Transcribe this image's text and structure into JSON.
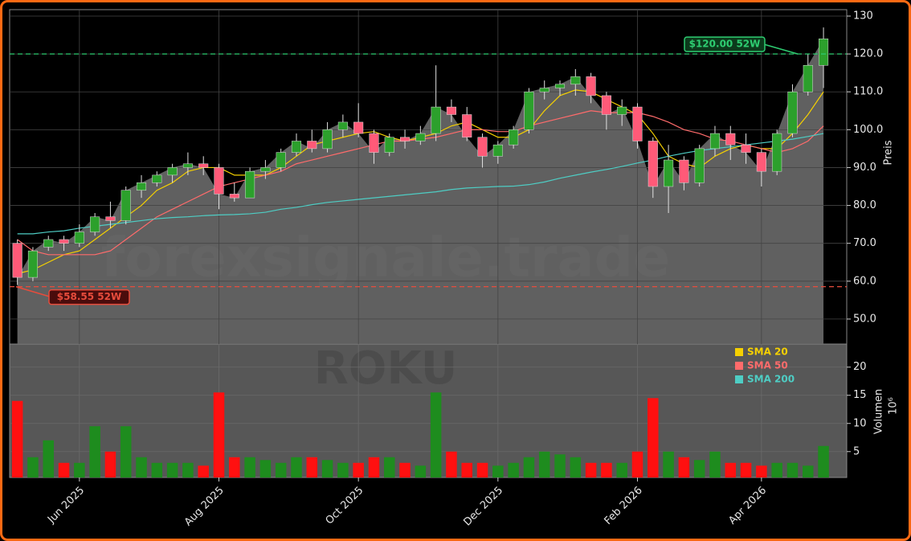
{
  "chart_data": [
    {
      "type": "candlestick",
      "open": [
        70,
        61,
        69,
        71,
        70,
        73,
        77,
        76,
        84,
        86,
        88,
        90,
        91,
        90,
        83,
        82,
        89,
        90,
        94,
        97,
        95,
        100,
        102,
        99,
        94,
        98,
        97,
        99,
        106,
        104,
        98,
        93,
        96,
        100,
        110,
        111,
        112,
        114,
        109,
        104,
        106,
        97,
        85,
        92,
        86,
        95,
        99,
        96,
        94,
        89,
        99,
        110,
        117
      ],
      "high": [
        71,
        69,
        72,
        72,
        75,
        78,
        81,
        85,
        88,
        89,
        91,
        94,
        93,
        91,
        86,
        90,
        92,
        95,
        99,
        100,
        102,
        104,
        107,
        100,
        99,
        100,
        101,
        117,
        108,
        106,
        99,
        97,
        101,
        111,
        113,
        113,
        116,
        115,
        110,
        108,
        107,
        98,
        96,
        93,
        96,
        101,
        101,
        99,
        95,
        100,
        112,
        120,
        127
      ],
      "low": [
        59,
        60,
        68,
        68,
        69,
        72,
        74,
        75,
        82,
        85,
        86,
        88,
        88,
        79,
        81,
        82,
        87,
        89,
        93,
        94,
        94,
        98,
        98,
        91,
        93,
        95,
        96,
        97,
        102,
        97,
        90,
        91,
        95,
        99,
        108,
        109,
        109,
        107,
        100,
        101,
        95,
        82,
        78,
        84,
        85,
        93,
        92,
        91,
        85,
        88,
        98,
        109,
        111
      ],
      "close": [
        61,
        68,
        71,
        70,
        73,
        77,
        76,
        84,
        86,
        88,
        90,
        91,
        90,
        83,
        82,
        89,
        90,
        94,
        97,
        95,
        100,
        102,
        99,
        94,
        98,
        97,
        99,
        106,
        104,
        98,
        93,
        96,
        100,
        110,
        111,
        112,
        114,
        109,
        104,
        106,
        97,
        85,
        92,
        86,
        95,
        99,
        96,
        94,
        89,
        99,
        110,
        117,
        124
      ],
      "up_color": "#2ca02c",
      "down_color": "#ff5a78",
      "area_color": "#6a6a6a",
      "series": [
        {
          "name": "SMA 20",
          "color": "#f5d000",
          "values": [
            62,
            63,
            65,
            67,
            68,
            71,
            74,
            77,
            80,
            84,
            86,
            89,
            90,
            90,
            88,
            88,
            88,
            90,
            93,
            96,
            97,
            98,
            99,
            99.5,
            98,
            97,
            98,
            99,
            101,
            102,
            100,
            98,
            98,
            100,
            105,
            109,
            110.5,
            110,
            108,
            106,
            104,
            99,
            93,
            91,
            90,
            93,
            95,
            96,
            95,
            95,
            99,
            104,
            110
          ]
        },
        {
          "name": "SMA 50",
          "color": "#ff6b6b",
          "values": [
            71,
            68,
            67,
            67,
            67,
            67,
            68,
            71,
            74,
            77,
            79,
            81,
            83,
            85,
            86,
            87,
            88,
            89,
            91,
            92,
            93,
            94,
            95,
            96,
            97,
            97,
            97.5,
            98,
            99,
            100,
            100,
            99.5,
            99.5,
            101,
            102,
            103,
            104,
            105,
            104.5,
            104.5,
            104.5,
            103.5,
            102,
            100,
            99,
            97.5,
            97,
            96,
            95,
            94,
            95,
            97,
            101
          ]
        },
        {
          "name": "SMA 200",
          "color": "#4ecdc4",
          "values": [
            72.5,
            72.5,
            73,
            73.3,
            74,
            74.5,
            75,
            75.5,
            76,
            76.5,
            76.8,
            77,
            77.3,
            77.5,
            77.6,
            77.8,
            78.2,
            79,
            79.5,
            80.2,
            80.8,
            81.2,
            81.6,
            82,
            82.4,
            82.8,
            83.2,
            83.6,
            84.2,
            84.6,
            84.8,
            85,
            85.1,
            85.5,
            86.2,
            87.2,
            88,
            88.8,
            89.5,
            90.3,
            91.2,
            92,
            93,
            93.8,
            94.5,
            95,
            95.5,
            96,
            96.5,
            97,
            97.5,
            98.2,
            99
          ]
        }
      ],
      "ylim": [
        43.4,
        131.7
      ],
      "yticks": [
        {
          "value": 50,
          "label": "50.0"
        },
        {
          "value": 60,
          "label": "60.0"
        },
        {
          "value": 70,
          "label": "70.0"
        },
        {
          "value": 80,
          "label": "80.0"
        },
        {
          "value": 90,
          "label": "90.0"
        },
        {
          "value": 100,
          "label": "100.0"
        },
        {
          "value": 110,
          "label": "110.0"
        },
        {
          "value": 120,
          "label": "120.0"
        },
        130
      ],
      "ylabel": "Preis",
      "hlines": [
        {
          "value": 120,
          "label": "$120.00 52W",
          "color": "#2ecc71"
        },
        {
          "value": 58.55,
          "label": "$58.55 52W",
          "color": "#e74c3c"
        }
      ],
      "watermark": "forexsignale.trade",
      "grid": true
    },
    {
      "type": "bar",
      "categories": [
        null,
        null,
        null,
        null,
        "Jun 2025",
        null,
        null,
        null,
        null,
        null,
        null,
        null,
        null,
        "Aug 2025",
        null,
        null,
        null,
        null,
        null,
        null,
        null,
        null,
        "Oct 2025",
        null,
        null,
        null,
        null,
        null,
        null,
        null,
        null,
        "Dec 2025",
        null,
        null,
        null,
        null,
        null,
        null,
        null,
        null,
        "Feb 2026",
        null,
        null,
        null,
        null,
        null,
        null,
        null,
        "Apr 2026",
        null,
        null,
        null,
        null
      ],
      "values": [
        14,
        4,
        7,
        3,
        3,
        9.5,
        5,
        9.5,
        4,
        3,
        3,
        3,
        2.5,
        15.5,
        4,
        4,
        3.5,
        3,
        4,
        4,
        3.5,
        3,
        3,
        4,
        4,
        3,
        2.5,
        15.5,
        5,
        3,
        3,
        2.5,
        3,
        4,
        5,
        4.5,
        4,
        3,
        3,
        3,
        5,
        14.5,
        5,
        4,
        3.5,
        5,
        3,
        3,
        2.5,
        3,
        3,
        2.5,
        6
      ],
      "up_color": "#1e8c1e",
      "down_color": "#ff1010",
      "ylim": [
        0.4,
        24.1
      ],
      "yticks": [
        5,
        10,
        15,
        20
      ],
      "ylabel": "Volumen",
      "multiplier": "10⁶",
      "watermark": "ROKU",
      "legend": "upper right",
      "grid": true
    }
  ]
}
